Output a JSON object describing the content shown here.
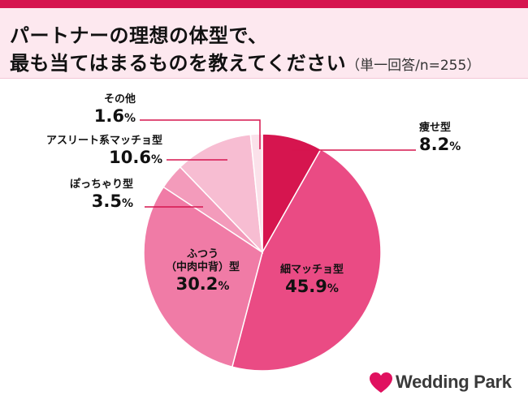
{
  "header": {
    "title_line1": "パートナーの理想の体型で、",
    "title_line2": "最も当てはまるものを教えてください",
    "subtitle": "（単一回答/n=255）"
  },
  "chart_data": {
    "type": "pie",
    "unit": "%",
    "slices": [
      {
        "label": "痩せ型",
        "value": 8.2,
        "color": "#d6154f"
      },
      {
        "label": "細マッチョ型",
        "value": 45.9,
        "color": "#ea4b84"
      },
      {
        "label": "ふつう（中肉中背）型",
        "value": 30.2,
        "color": "#f07ba6"
      },
      {
        "label": "ぽっちゃり型",
        "value": 3.5,
        "color": "#f39bbb"
      },
      {
        "label": "アスリート系マッチョ型",
        "value": 10.6,
        "color": "#f7bdd2"
      },
      {
        "label": "その他",
        "value": 1.6,
        "color": "#fbe1ea"
      }
    ]
  },
  "labels": {
    "yase_name": "痩せ型",
    "yase_val": "8.2",
    "hoso_name": "細マッチョ型",
    "hoso_val": "45.9",
    "futsu_name1": "ふつう",
    "futsu_name2": "（中肉中背）型",
    "futsu_val": "30.2",
    "pocha_name": "ぽっちゃり型",
    "pocha_val": "3.5",
    "athlete_name": "アスリート系マッチョ型",
    "athlete_val": "10.6",
    "other_name": "その他",
    "other_val": "1.6",
    "pct": "%"
  },
  "logo": {
    "text": "Wedding Park"
  },
  "colors": {
    "accent": "#d6154f",
    "header_bg": "#fde8ef"
  }
}
